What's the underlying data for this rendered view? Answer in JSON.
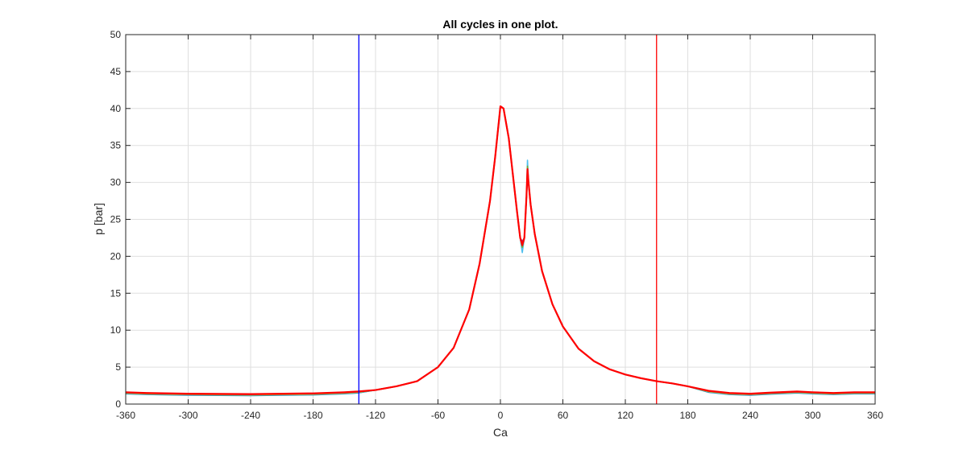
{
  "chart_data": {
    "type": "line",
    "title": "All cycles in one plot.",
    "xlabel": "Ca",
    "ylabel": "p [bar]",
    "xlim": [
      -360,
      360
    ],
    "ylim": [
      0,
      50
    ],
    "xticks": [
      -360,
      -300,
      -240,
      -180,
      -120,
      -60,
      0,
      60,
      120,
      180,
      240,
      300,
      360
    ],
    "yticks": [
      0,
      5,
      10,
      15,
      20,
      25,
      30,
      35,
      40,
      45,
      50
    ],
    "xtick_labels": [
      "-360",
      "-300",
      "-240",
      "-180",
      "-120",
      "-60",
      "0",
      "60",
      "120",
      "180",
      "240",
      "300",
      "360"
    ],
    "ytick_labels": [
      "0",
      "5",
      "10",
      "15",
      "20",
      "25",
      "30",
      "35",
      "40",
      "45",
      "50"
    ],
    "grid": true,
    "colors": {
      "cycle_1": "#0072bd",
      "cycle_2": "#4dbeee",
      "cycle_3": "#77ac30",
      "cycle_4": "#edb120",
      "cycle_5": "#7e2f8e",
      "cycle_main": "#ff0000",
      "marker_left": "#0000ff",
      "marker_right": "#ff0000",
      "grid": "#dfdfdf",
      "axes": "#262626"
    },
    "vertical_lines": [
      {
        "x": -136,
        "color": "#0000ff"
      },
      {
        "x": 150,
        "color": "#ff0000"
      }
    ],
    "series_curve": {
      "x": [
        -360,
        -340,
        -300,
        -240,
        -180,
        -150,
        -137,
        -120,
        -100,
        -80,
        -60,
        -45,
        -30,
        -20,
        -10,
        -5,
        0,
        3,
        8,
        12,
        16,
        19,
        21,
        23,
        25,
        26,
        27,
        29,
        33,
        40,
        50,
        60,
        75,
        90,
        105,
        120,
        135,
        150,
        165,
        180,
        200,
        220,
        240,
        260,
        285,
        300,
        320,
        340,
        360
      ],
      "y": [
        1.5,
        1.4,
        1.3,
        1.25,
        1.35,
        1.5,
        1.6,
        1.9,
        2.4,
        3.1,
        5.0,
        7.6,
        12.8,
        19.0,
        27.5,
        33.5,
        40.3,
        40.0,
        36.0,
        31.0,
        26.0,
        22.5,
        21.5,
        22.5,
        28.0,
        31.5,
        30.0,
        27.0,
        23.0,
        18.0,
        13.5,
        10.5,
        7.5,
        5.8,
        4.7,
        4.0,
        3.5,
        3.1,
        2.8,
        2.4,
        1.7,
        1.4,
        1.3,
        1.45,
        1.6,
        1.5,
        1.4,
        1.5,
        1.5
      ]
    },
    "cycles": [
      {
        "color": "#0072bd",
        "peak2": 31.8,
        "dip": 21.0
      },
      {
        "color": "#4dbeee",
        "peak2": 33.0,
        "dip": 20.5
      },
      {
        "color": "#77ac30",
        "peak2": 32.2,
        "dip": 21.2
      },
      {
        "color": "#edb120",
        "peak2": 31.0,
        "dip": 21.8
      },
      {
        "color": "#7e2f8e",
        "peak2": 30.5,
        "dip": 22.0
      },
      {
        "color": "#ff0000",
        "peak2": 31.8,
        "dip": 21.5
      }
    ]
  }
}
